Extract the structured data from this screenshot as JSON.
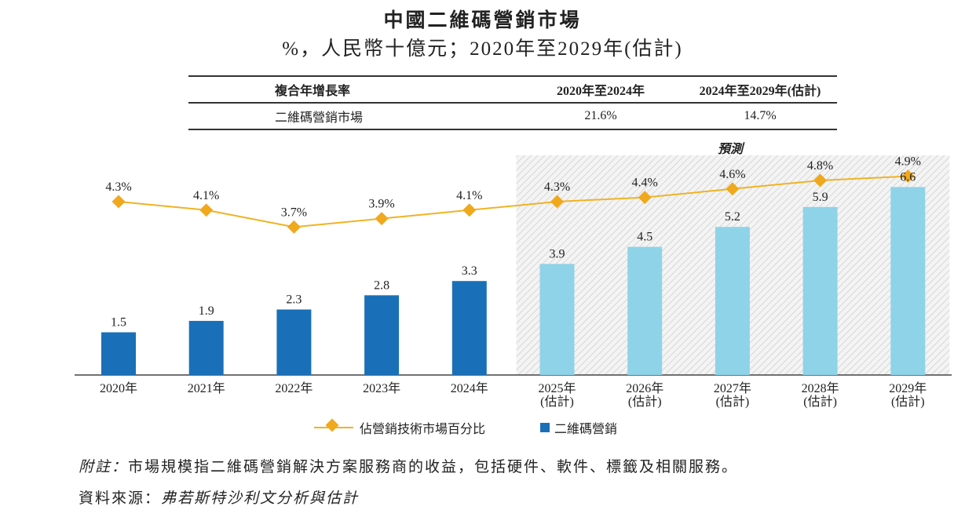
{
  "chart_data": {
    "type": "bar+line",
    "title": "中國二維碼營銷市場",
    "subtitle": "%，人民幣十億元；2020年至2029年(估計)",
    "categories": [
      "2020年",
      "2021年",
      "2022年",
      "2023年",
      "2024年",
      "2025年\n(估計)",
      "2026年\n(估計)",
      "2027年\n(估計)",
      "2028年\n(估計)",
      "2029年\n(估計)"
    ],
    "series": [
      {
        "name": "二維碼營銷",
        "type": "bar",
        "values": [
          1.5,
          1.9,
          2.3,
          2.8,
          3.3,
          3.9,
          4.5,
          5.2,
          5.9,
          6.6
        ],
        "color": "#1a70b8",
        "forecast_color": "#8fd3e8"
      },
      {
        "name": "佔營銷技術市場百分比",
        "type": "line",
        "values": [
          4.3,
          4.1,
          3.7,
          3.9,
          4.1,
          4.3,
          4.4,
          4.6,
          4.8,
          4.9
        ],
        "unit": "%",
        "color": "#f0b323"
      }
    ],
    "forecast_label": "預測",
    "forecast_start_index": 5,
    "legend_position": "bottom",
    "grid": false
  },
  "cagr_table": {
    "headers": [
      "複合年增長率",
      "2020年至2024年",
      "2024年至2029年(估計)"
    ],
    "rows": [
      [
        "二維碼營銷市場",
        "21.6%",
        "14.7%"
      ]
    ]
  },
  "footer": {
    "note_label": "附註：",
    "note": "市場規模指二維碼營銷解決方案服務商的收益，包括硬件、軟件、標籤及相關服務。",
    "source_label": "資料來源：",
    "source": "弗若斯特沙利文分析與估計"
  }
}
